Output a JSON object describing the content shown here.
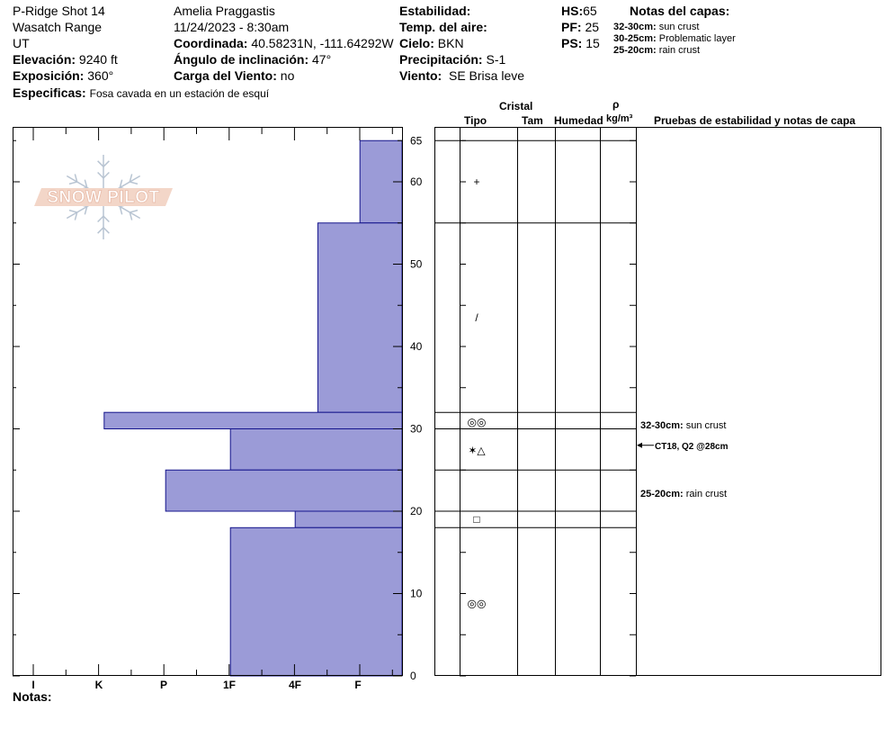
{
  "header": {
    "site_name": "P-Ridge Shot 14",
    "range": "Wasatch Range",
    "state": "UT",
    "elevation_label": "Elevación:",
    "elevation_value": "9240 ft",
    "aspect_label": "Exposición:",
    "aspect_value": "360°",
    "specifics_label": "Especificas:",
    "specifics_value": "Fosa cavada en un estación de esquí",
    "observer": "Amelia Praggastis",
    "datetime": "11/24/2023 - 8:30am",
    "coord_label": "Coordinada:",
    "coord_value": "40.58231N, -111.64292W",
    "slope_label": "Ángulo de inclinación:",
    "slope_value": "47°",
    "wind_loading_label": "Carga del Viento:",
    "wind_loading_value": "no",
    "stability_label": "Estabilidad:",
    "air_temp_label": "Temp. del aire:",
    "sky_label": "Cielo:",
    "sky_value": "BKN",
    "precip_label": "Precipitación:",
    "precip_value": "S-1",
    "wind_label": "Viento:",
    "wind_value": "SE  Brisa leve",
    "hs_label": "HS:",
    "hs_value": "65",
    "pf_label": "PF:",
    "pf_value": "25",
    "ps_label": "PS:",
    "ps_value": "15",
    "layer_notes_title": "Notas del capas:",
    "layer_notes": [
      {
        "range": "32-30cm:",
        "text": "sun crust"
      },
      {
        "range": "30-25cm:",
        "text": "Problematic layer"
      },
      {
        "range": "25-20cm:",
        "text": "rain crust"
      }
    ]
  },
  "logo": {
    "text": "SNOW PILOT"
  },
  "columns": {
    "crystal": "Cristal",
    "type": "Tipo",
    "size": "Tam",
    "moisture": "Humedad",
    "rho": "ρ",
    "density_unit": "kg/m³",
    "tests": "Pruebas de estabilidad y notas de capa"
  },
  "footer": {
    "notes_label": "Notas:"
  },
  "chart_data": {
    "type": "bar",
    "orientation": "horizontal",
    "y_label": "",
    "y_range": [
      0,
      65
    ],
    "y_ticks": [
      0,
      10,
      20,
      30,
      40,
      50,
      60,
      65
    ],
    "x_categories": [
      "I",
      "K",
      "P",
      "1F",
      "4F",
      "F"
    ],
    "hardness_index_scale": {
      "F": 1,
      "4F": 2,
      "1F": 3,
      "P": 4,
      "K": 5,
      "I": 6
    },
    "layers": [
      {
        "top": 65,
        "bottom": 55,
        "hardness_index": 0.65
      },
      {
        "top": 55,
        "bottom": 32,
        "hardness_index": 1.3
      },
      {
        "top": 32,
        "bottom": 30,
        "hardness_index": 4.6
      },
      {
        "top": 30,
        "bottom": 25,
        "hardness_index": 2.65
      },
      {
        "top": 25,
        "bottom": 20,
        "hardness_index": 3.65
      },
      {
        "top": 20,
        "bottom": 18,
        "hardness_index": 1.65
      },
      {
        "top": 18,
        "bottom": 0,
        "hardness_index": 2.65
      }
    ],
    "boundaries": [
      65,
      55,
      32,
      30,
      25,
      20,
      18
    ],
    "grain_symbols": [
      {
        "depth": 60,
        "symbol": "+"
      },
      {
        "depth": 43.5,
        "symbol": "/"
      },
      {
        "depth": 30.8,
        "symbol": "◎◎"
      },
      {
        "depth": 27.4,
        "symbol": "✶△"
      },
      {
        "depth": 19,
        "symbol": "□"
      },
      {
        "depth": 8.8,
        "symbol": "◎◎"
      }
    ],
    "notes": [
      {
        "depth": 30.5,
        "range": "32-30cm:",
        "text": "sun crust"
      },
      {
        "depth": 22.2,
        "range": "25-20cm:",
        "text": "rain crust"
      }
    ],
    "tests": [
      {
        "depth": 28,
        "text": "CT18, Q2 @28cm"
      }
    ]
  }
}
